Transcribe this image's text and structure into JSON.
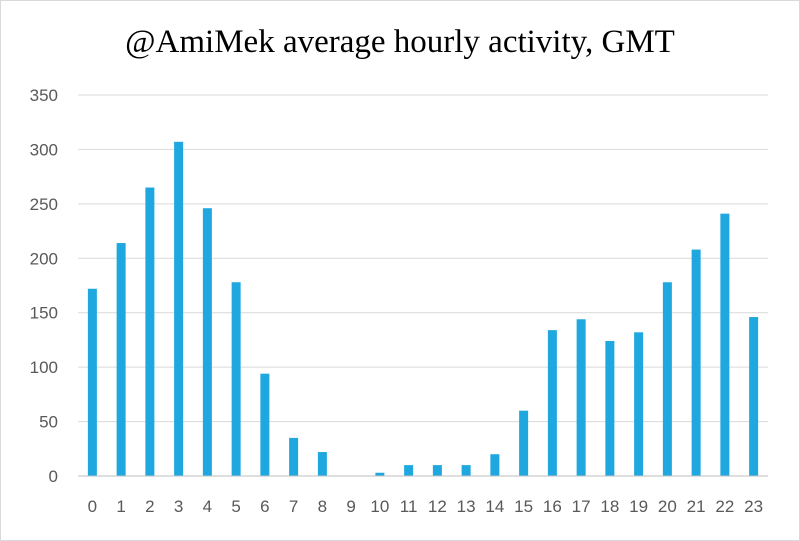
{
  "chart_data": {
    "type": "bar",
    "title": "@AmiMek average hourly activity, GMT",
    "xlabel": "",
    "ylabel": "",
    "categories": [
      "0",
      "1",
      "2",
      "3",
      "4",
      "5",
      "6",
      "7",
      "8",
      "9",
      "10",
      "11",
      "12",
      "13",
      "14",
      "15",
      "16",
      "17",
      "18",
      "19",
      "20",
      "21",
      "22",
      "23"
    ],
    "values": [
      172,
      214,
      265,
      307,
      246,
      178,
      94,
      35,
      22,
      0,
      3,
      10,
      10,
      10,
      20,
      60,
      134,
      144,
      124,
      132,
      178,
      208,
      241,
      146
    ],
    "ylim": [
      0,
      350
    ],
    "yticks": [
      "0",
      "50",
      "100",
      "150",
      "200",
      "250",
      "300",
      "350"
    ],
    "grid": true,
    "legend": "none",
    "bar_color": "#1fa7e0",
    "grid_color": "#d9d9d9",
    "axis_color": "#bfbfbf"
  }
}
